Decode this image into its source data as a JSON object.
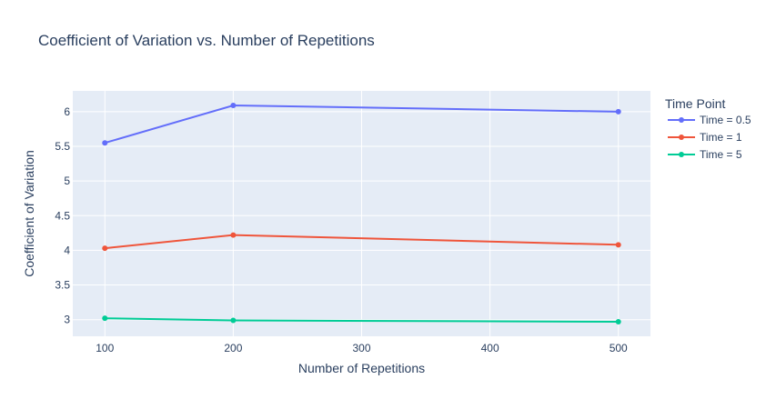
{
  "chart_data": {
    "type": "line",
    "title": "Coefficient of Variation vs. Number of Repetitions",
    "xlabel": "Number of Repetitions",
    "ylabel": "Coefficient of Variation",
    "x": [
      100,
      200,
      500
    ],
    "xlim": [
      75,
      525
    ],
    "ylim": [
      2.76,
      6.3
    ],
    "xticks": [
      100,
      200,
      300,
      400,
      500
    ],
    "yticks": [
      3,
      3.5,
      4,
      4.5,
      5,
      5.5,
      6
    ],
    "grid": true,
    "legend": {
      "title": "Time Point",
      "placement": "right"
    },
    "series": [
      {
        "name": "Time = 0.5",
        "color": "#636efa",
        "values": [
          5.55,
          6.09,
          6.0
        ]
      },
      {
        "name": "Time = 1",
        "color": "#ef553b",
        "values": [
          4.03,
          4.22,
          4.08
        ]
      },
      {
        "name": "Time = 5",
        "color": "#00cc96",
        "values": [
          3.02,
          2.99,
          2.97
        ]
      }
    ]
  }
}
